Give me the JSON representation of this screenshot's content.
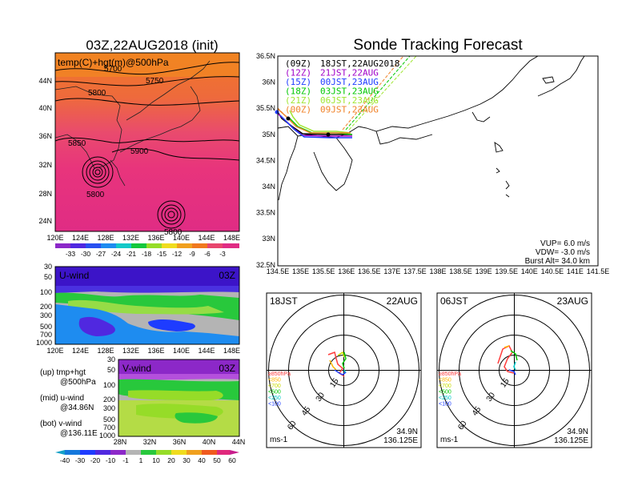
{
  "left_panel": {
    "title": "03Z,22AUG2018 (init)",
    "map_label": "temp(C)+hgt(m)@500hPa",
    "lat_ticks": [
      "44N",
      "40N",
      "36N",
      "32N",
      "28N",
      "24N"
    ],
    "lon_ticks": [
      "120E",
      "124E",
      "128E",
      "132E",
      "136E",
      "140E",
      "144E",
      "148E"
    ],
    "contour_labels": [
      "5700",
      "5750",
      "5800",
      "5850",
      "5900",
      "5800",
      "5800"
    ],
    "temp_colorbar": [
      "-33",
      "-30",
      "-27",
      "-24",
      "-21",
      "-18",
      "-15",
      "-12",
      "-9",
      "-6",
      "-3"
    ],
    "uwind_label": "U-wind",
    "uwind_time": "03Z",
    "vwind_label": "V-wind",
    "vwind_time": "03Z",
    "pressure_ticks": [
      "30",
      "50",
      "100",
      "200",
      "300",
      "500",
      "700",
      "1000"
    ],
    "vwind_lat_ticks": [
      "28N",
      "32N",
      "36N",
      "40N",
      "44N"
    ],
    "wind_colorbar": [
      "-40",
      "-30",
      "-20",
      "-10",
      "-1",
      "1",
      "10",
      "20",
      "30",
      "40",
      "50",
      "60"
    ],
    "legend": {
      "up1": "(up) tmp+hgt",
      "up2": "@500hPa",
      "mid1": "(mid) u-wind",
      "mid2": "@34.86N",
      "bot1": "(bot) v-wind",
      "bot2": "@136.11E"
    }
  },
  "right_panel": {
    "title": "Sonde Tracking Forecast",
    "lat_ticks": [
      "36.5N",
      "36N",
      "35.5N",
      "35N",
      "34.5N",
      "34N",
      "33.5N",
      "33N",
      "32.5N"
    ],
    "lon_ticks": [
      "134.5E",
      "135E",
      "135.5E",
      "136E",
      "136.5E",
      "137E",
      "137.5E",
      "138E",
      "138.5E",
      "139E",
      "139.5E",
      "140E",
      "140.5E",
      "141E",
      "141.5E"
    ],
    "runs": [
      {
        "time": "(09Z)",
        "label": "18JST,22AUG2018",
        "color": "#000000"
      },
      {
        "time": "(12Z)",
        "label": "21JST,22AUG",
        "color": "#a000c8"
      },
      {
        "time": "(15Z)",
        "label": "00JST,23AUG",
        "color": "#1e3cff"
      },
      {
        "time": "(18Z)",
        "label": "03JST,23AUG",
        "color": "#00c800"
      },
      {
        "time": "(21Z)",
        "label": "06JST,23AUG",
        "color": "#a0e632"
      },
      {
        "time": "(00Z)",
        "label": "09JST,23AUG",
        "color": "#f08228"
      }
    ],
    "params": {
      "vup": "VUP=  6.0 m/s",
      "vdw": "VDW= -3.0 m/s",
      "burst": "Burst Alt= 34.0 km"
    }
  },
  "hodographs": [
    {
      "left": "18JST",
      "right": "22AUG",
      "lat": "34.9N",
      "lon": "136.125E",
      "unit": "ms-1",
      "rings": [
        "15",
        "30",
        "45",
        "60"
      ]
    },
    {
      "left": "06JST",
      "right": "23AUG",
      "lat": "34.9N",
      "lon": "136.125E",
      "unit": "ms-1",
      "rings": [
        "15",
        "30",
        "45",
        "60"
      ]
    }
  ],
  "hodo_legend": [
    {
      "text": "≥850hPa",
      "color": "#ff3c3c"
    },
    {
      "text": "<850",
      "color": "#ffb400"
    },
    {
      "text": "<700",
      "color": "#c8dc00"
    },
    {
      "text": "<500",
      "color": "#00c800"
    },
    {
      "text": "<250",
      "color": "#00c8c8"
    },
    {
      "text": "<100",
      "color": "#1e3cff"
    }
  ],
  "chart_data": [
    {
      "type": "heatmap",
      "title": "03Z,22AUG2018 (init)",
      "label": "temp(C)+hgt(m)@500hPa",
      "xlim": [
        "120E",
        "149E"
      ],
      "ylim": [
        "22N",
        "47N"
      ],
      "colorbar_levels": [
        -33,
        -30,
        -27,
        -24,
        -21,
        -18,
        -15,
        -12,
        -9,
        -6,
        -3
      ],
      "contour_levels": [
        5700,
        5750,
        5800,
        5850,
        5900
      ]
    },
    {
      "type": "line",
      "title": "Sonde Tracking Forecast",
      "xlim": [
        134.5,
        141.5
      ],
      "ylim": [
        32.5,
        36.5
      ],
      "params": {
        "vup": 6.0,
        "vdw": -3.0,
        "burst_alt_km": 34.0
      }
    }
  ]
}
